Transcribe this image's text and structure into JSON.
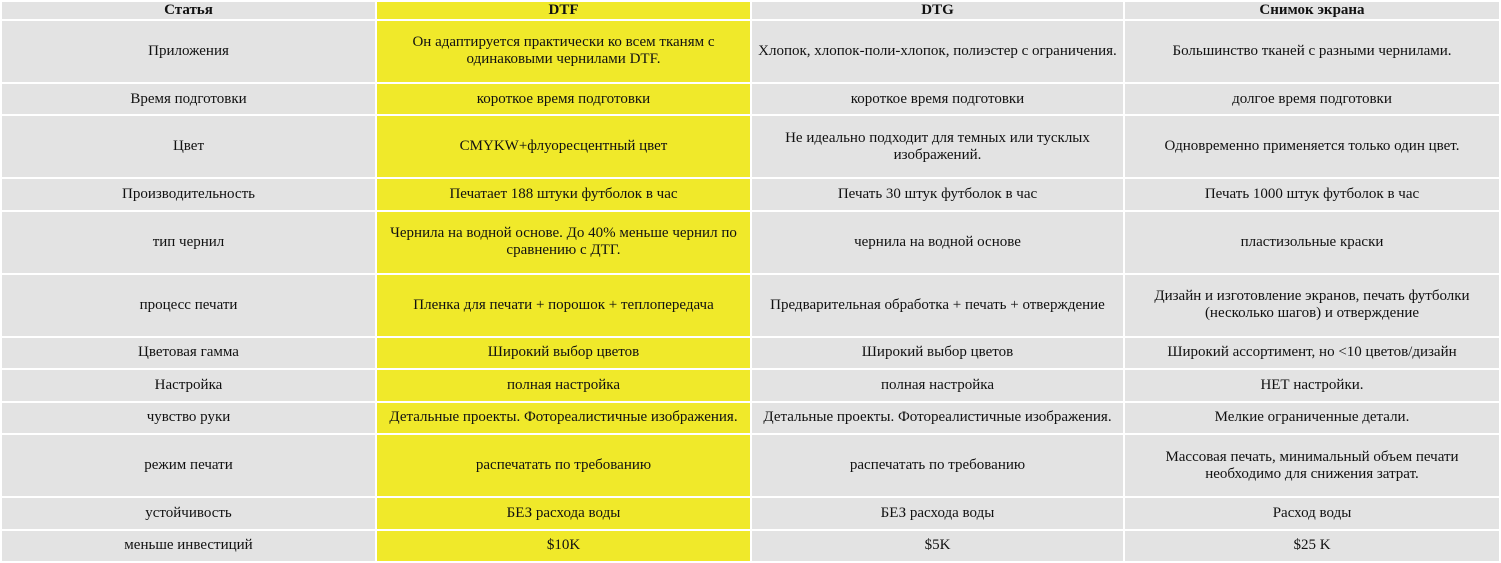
{
  "table": {
    "headers": [
      "Статья",
      "DTF",
      "DTG",
      "Снимок экрана"
    ],
    "rows": [
      [
        "Приложения",
        "Он адаптируется практически ко всем тканям с одинаковыми чернилами DTF.",
        "Хлопок, хлопок-поли-хлопок, полиэстер с ограничения.",
        "Большинство тканей с разными чернилами."
      ],
      [
        "Время подготовки",
        "короткое время подготовки",
        "короткое время подготовки",
        "долгое время подготовки"
      ],
      [
        "Цвет",
        "CMYKW+флуоресцентный цвет",
        "Не идеально подходит для темных или тусклых изображений.",
        "Одновременно применяется только один цвет."
      ],
      [
        "Производительность",
        "Печатает 188 штуки футболок в час",
        "Печать 30 штук футболок в час",
        "Печать 1000 штук футболок в час"
      ],
      [
        "тип чернил",
        "Чернила на водной основе. До 40% меньше чернил по сравнению с ДТГ.",
        "чернила на водной основе",
        "пластизольные краски"
      ],
      [
        "процесс печати",
        "Пленка для печати + порошок + теплопередача",
        "Предварительная обработка + печать + отверждение",
        "Дизайн и изготовление экранов, печать футболки (несколько шагов) и отверждение"
      ],
      [
        "Цветовая гамма",
        "Широкий выбор цветов",
        "Широкий выбор цветов",
        "Широкий ассортимент, но <10 цветов/дизайн"
      ],
      [
        "Настройка",
        "полная настройка",
        "полная настройка",
        "НЕТ настройки."
      ],
      [
        "чувство руки",
        "Детальные проекты. Фотореалистичные изображения.",
        "Детальные проекты. Фотореалистичные изображения.",
        "Мелкие ограниченные детали."
      ],
      [
        "режим печати",
        "распечатать по требованию",
        "распечатать по требованию",
        "Массовая печать, минимальный объем печати необходимо для снижения затрат."
      ],
      [
        "устойчивость",
        "БЕЗ расхода воды",
        "БЕЗ расхода воды",
        "Расход воды"
      ],
      [
        "меньше инвестиций",
        "$10K",
        "$5K",
        "$25 K"
      ]
    ]
  },
  "colors": {
    "cell_background": "#e3e3e3",
    "dtf_highlight": "#f0e92a",
    "grid_lines": "#ffffff"
  }
}
